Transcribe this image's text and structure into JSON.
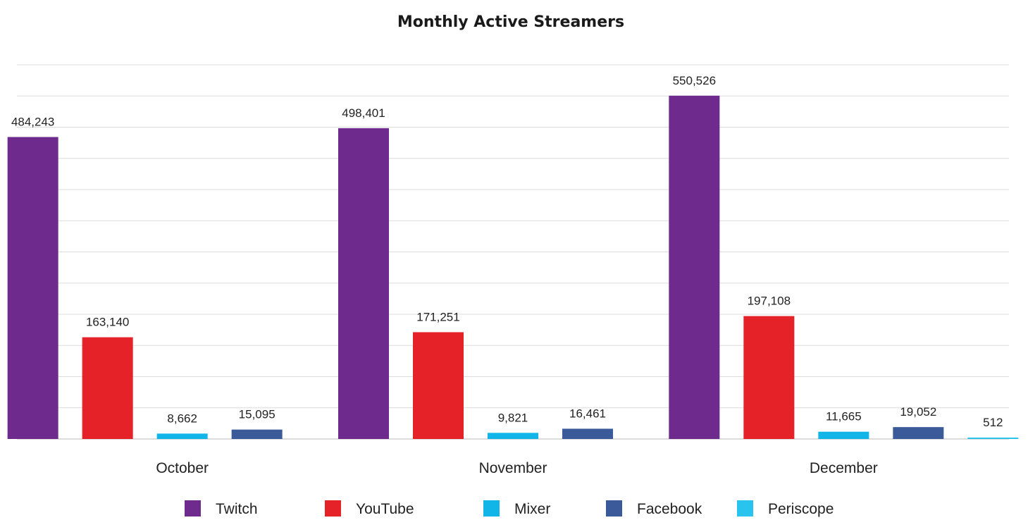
{
  "chart_data": {
    "type": "bar",
    "title": "Monthly Active Streamers",
    "categories": [
      "October",
      "November",
      "December"
    ],
    "series": [
      {
        "name": "Twitch",
        "color": "#6e2a8d",
        "values": [
          484243,
          498401,
          550526
        ],
        "labels": [
          "484,243",
          "498,401",
          "550,526"
        ]
      },
      {
        "name": "YouTube",
        "color": "#e52228",
        "values": [
          163140,
          171251,
          197108
        ],
        "labels": [
          "163,140",
          "171,251",
          "197,108"
        ]
      },
      {
        "name": "Mixer",
        "color": "#12b5e8",
        "values": [
          8662,
          9821,
          11665
        ],
        "labels": [
          "8,662",
          "9,821",
          "11,665"
        ]
      },
      {
        "name": "Facebook",
        "color": "#3a5a9a",
        "values": [
          15095,
          16461,
          19052
        ],
        "labels": [
          "15,095",
          "16,461",
          "19,052"
        ]
      },
      {
        "name": "Periscope",
        "color": "#29c4ee",
        "values": [
          null,
          null,
          512
        ],
        "labels": [
          "",
          "",
          "512"
        ]
      }
    ],
    "ylim": [
      0,
      600000
    ],
    "y_gridline_step": 50000,
    "y_tick_labels_shown": false,
    "grid": true,
    "legend_position": "bottom"
  }
}
